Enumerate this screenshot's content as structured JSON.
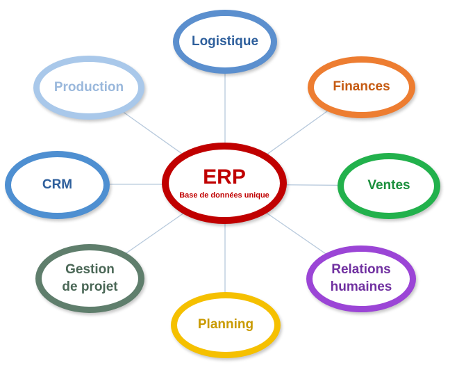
{
  "diagram": {
    "center": {
      "title": "ERP",
      "subtitle": "Base de données unique",
      "color": "#c00000"
    },
    "nodes": {
      "logistique": {
        "line1": "Logistique",
        "color": "#5b8fce",
        "text_color": "#2e5f9c"
      },
      "finances": {
        "line1": "Finances",
        "color": "#ed7d31",
        "text_color": "#c55a11"
      },
      "ventes": {
        "line1": "Ventes",
        "color": "#22b14c",
        "text_color": "#1a8f3c"
      },
      "relations": {
        "line1": "Relations",
        "line2": "humaines",
        "color": "#9b45d6",
        "text_color": "#7030a0"
      },
      "planning": {
        "line1": "Planning",
        "color": "#f5c000",
        "text_color": "#c99a00"
      },
      "gestion": {
        "line1": "Gestion",
        "line2": "de projet",
        "color": "#5f7e6c",
        "text_color": "#4a6756"
      },
      "crm": {
        "line1": "CRM",
        "color": "#4e8fd1",
        "text_color": "#2e5f9c"
      },
      "production": {
        "line1": "Production",
        "color": "#a9c8ea",
        "text_color": "#9ab8dc"
      }
    },
    "connector_color": "#b7c9dc"
  }
}
